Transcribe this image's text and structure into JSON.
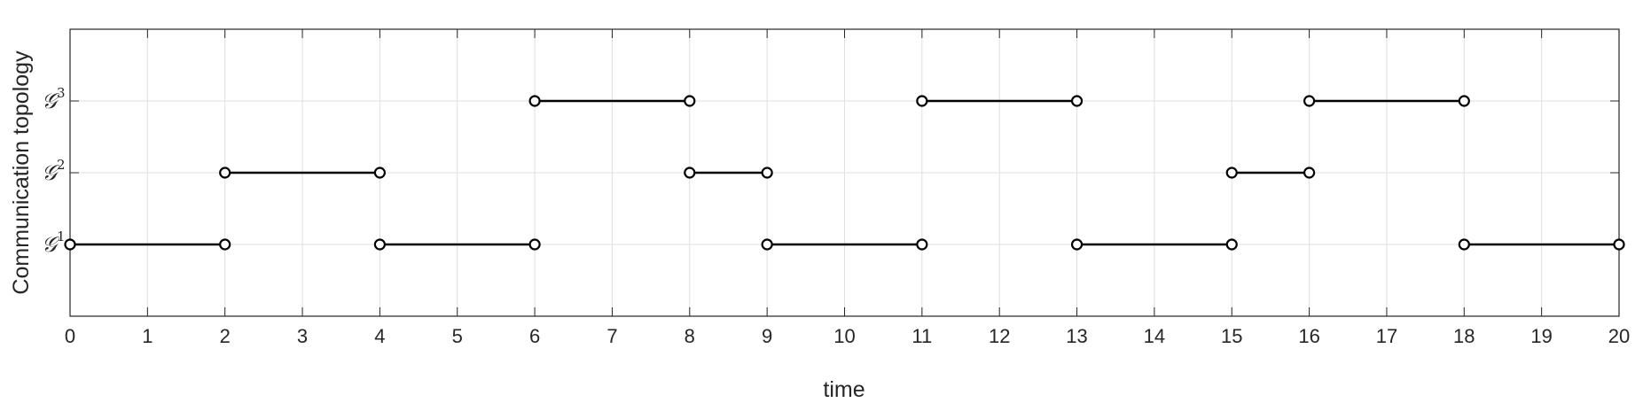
{
  "chart_data": {
    "type": "line",
    "title": "",
    "xlabel": "time",
    "ylabel": "Communication topology",
    "xlim": [
      0,
      20
    ],
    "ylim": [
      0,
      4
    ],
    "grid": true,
    "x_ticks": [
      0,
      1,
      2,
      3,
      4,
      5,
      6,
      7,
      8,
      9,
      10,
      11,
      12,
      13,
      14,
      15,
      16,
      17,
      18,
      19,
      20
    ],
    "y_ticks": [
      {
        "value": 1,
        "base": "𝒢",
        "sup": "1"
      },
      {
        "value": 2,
        "base": "𝒢",
        "sup": "2"
      },
      {
        "value": 3,
        "base": "𝒢",
        "sup": "3"
      }
    ],
    "line_color": "#000000",
    "segments": [
      {
        "topology": 1,
        "start": 0,
        "end": 2
      },
      {
        "topology": 2,
        "start": 2,
        "end": 4
      },
      {
        "topology": 1,
        "start": 4,
        "end": 6
      },
      {
        "topology": 3,
        "start": 6,
        "end": 8
      },
      {
        "topology": 2,
        "start": 8,
        "end": 9
      },
      {
        "topology": 1,
        "start": 9,
        "end": 11
      },
      {
        "topology": 3,
        "start": 11,
        "end": 13
      },
      {
        "topology": 1,
        "start": 13,
        "end": 15
      },
      {
        "topology": 2,
        "start": 15,
        "end": 16
      },
      {
        "topology": 3,
        "start": 16,
        "end": 18
      },
      {
        "topology": 1,
        "start": 18,
        "end": 20
      }
    ]
  }
}
